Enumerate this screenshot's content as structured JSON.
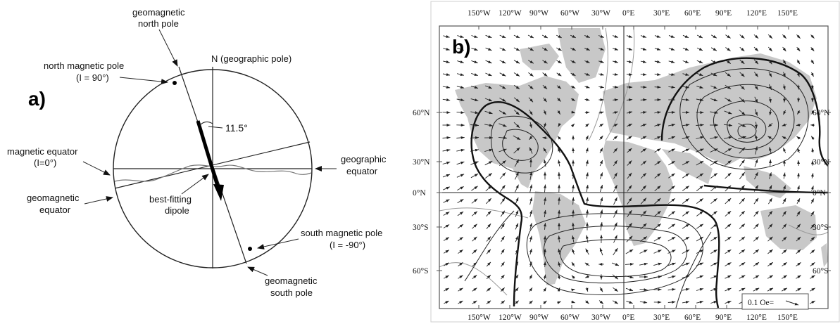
{
  "panel_a": {
    "panel_label": "a)",
    "north_label": "N (geographic pole)",
    "geomag_north_l1": "geomagnetic",
    "geomag_north_l2": "north pole",
    "north_mag_l1": "north magnetic pole",
    "north_mag_l2": "(I = 90°)",
    "angle": "11.5°",
    "mag_eq_l1": "magnetic equator",
    "mag_eq_l2": "(I=0°)",
    "geo_eq_l1": "geographic",
    "geo_eq_l2": "equator",
    "geomag_eq_l1": "geomagnetic",
    "geomag_eq_l2": "equator",
    "dipole_l1": "best-fitting",
    "dipole_l2": "dipole",
    "south_mag_l1": "south magnetic pole",
    "south_mag_l2": "(I = -90°)",
    "geomag_south_l1": "geomagnetic",
    "geomag_south_l2": "south pole"
  },
  "panel_b": {
    "panel_label": "b)",
    "top_ticks": [
      "150°W",
      "120°W",
      "90°W",
      "60°W",
      "30°W",
      "0°E",
      "30°E",
      "60°E",
      "90°E",
      "120°E",
      "150°E"
    ],
    "bottom_ticks": [
      "150°W",
      "120°W",
      "90°W",
      "60°W",
      "30°W",
      "0°E",
      "30°E",
      "60°E",
      "90°E",
      "120°E",
      "150°E"
    ],
    "left_ticks": [
      "60°N",
      "30°N",
      "0°N",
      "30°S",
      "60°S"
    ],
    "right_ticks": [
      "60°N",
      "30°N",
      "0°N",
      "30°S",
      "60°S"
    ],
    "scale_label": "0.1 Oe="
  },
  "colors": {
    "land": "#c8c8c8",
    "contour": "#222222",
    "thin_contour": "#9a9a9a",
    "frame": "#555555"
  }
}
